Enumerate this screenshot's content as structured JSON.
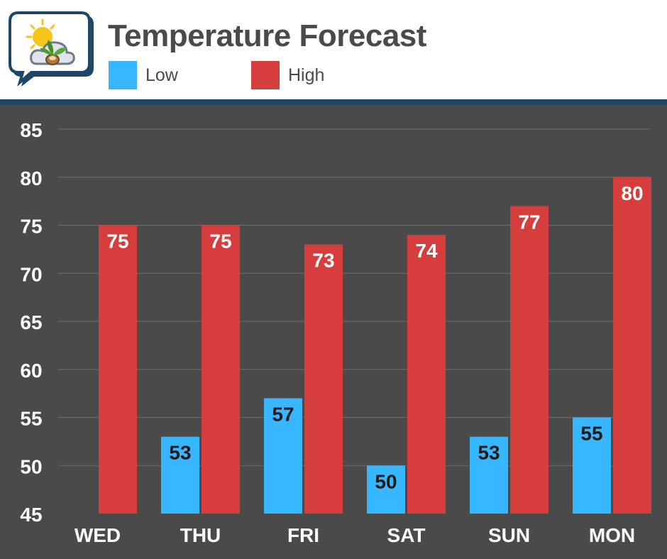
{
  "header": {
    "title": "Temperature Forecast",
    "logo_icon": "weather-sun-cloud-leaf-icon"
  },
  "legend": [
    {
      "label": "Low",
      "color": "#38b6ff"
    },
    {
      "label": "High",
      "color": "#d63d3d"
    }
  ],
  "chart_data": {
    "type": "bar",
    "categories": [
      "WED",
      "THU",
      "FRI",
      "SAT",
      "SUN",
      "MON"
    ],
    "series": [
      {
        "name": "Low",
        "values": [
          null,
          53,
          57,
          50,
          53,
          55
        ],
        "color": "#38b6ff",
        "label_color": "#1a1a1a"
      },
      {
        "name": "High",
        "values": [
          75,
          75,
          73,
          74,
          77,
          80
        ],
        "color": "#d63d3d",
        "label_color": "#ffffff"
      }
    ],
    "yticks": [
      45,
      50,
      55,
      60,
      65,
      70,
      75,
      80,
      85
    ],
    "ylim": [
      45,
      85
    ],
    "grid": true,
    "legend_position": "top"
  }
}
